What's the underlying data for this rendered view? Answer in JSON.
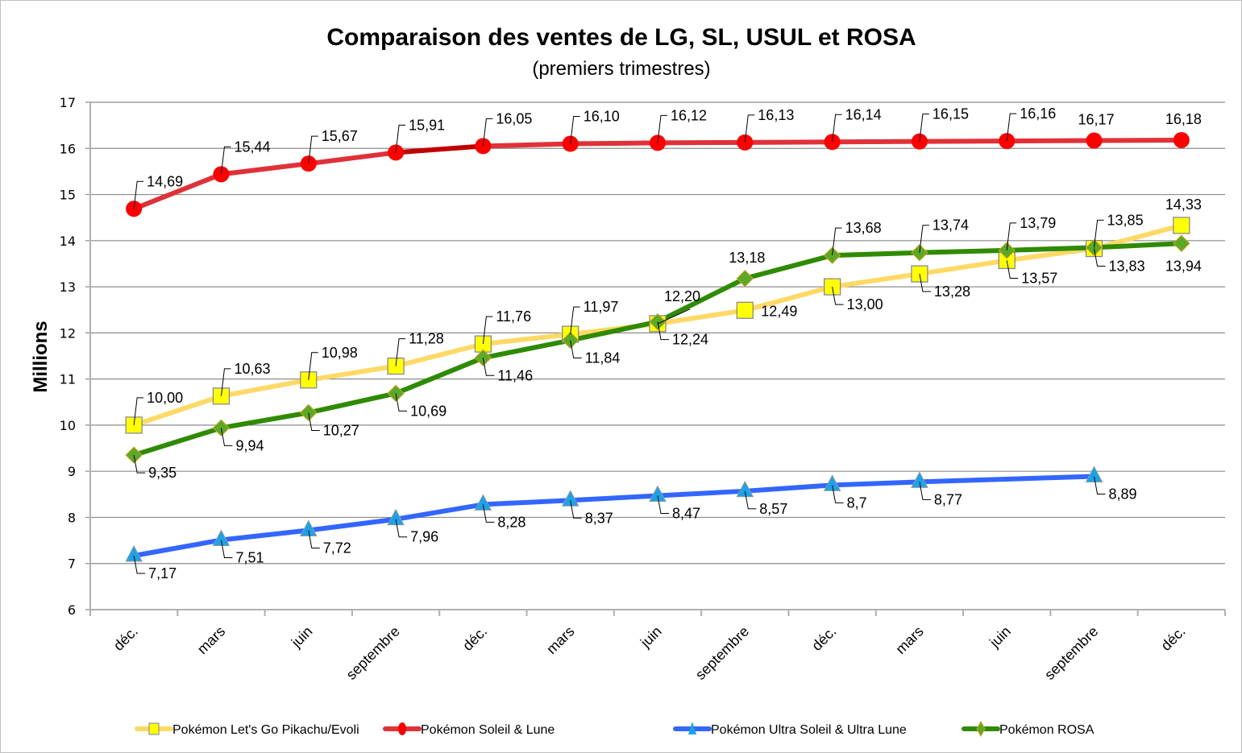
{
  "chart_data": {
    "type": "line",
    "title": "Comparaison des ventes de LG, SL, USUL et ROSA",
    "subtitle": "(premiers trimestres)",
    "xlabel": "",
    "ylabel": "Millions",
    "ylim": [
      6,
      17
    ],
    "yticks": [
      6,
      7,
      8,
      9,
      10,
      11,
      12,
      13,
      14,
      15,
      16,
      17
    ],
    "grid": true,
    "legend_position": "bottom",
    "categories": [
      "déc.",
      "mars",
      "juin",
      "septembre",
      "déc.",
      "mars",
      "juin",
      "septembre",
      "déc.",
      "mars",
      "juin",
      "septembre",
      "déc."
    ],
    "series": [
      {
        "name": "Pokémon Let's Go Pikachu/Evoli",
        "color": "#FFD966",
        "marker": "square",
        "marker_color": "#FFFF00",
        "values": [
          10.0,
          10.63,
          10.98,
          11.28,
          11.76,
          11.97,
          12.2,
          12.49,
          13.0,
          13.28,
          13.57,
          13.83,
          14.33
        ],
        "labels": [
          "10,00",
          "10,63",
          "10,98",
          "11,28",
          "11,76",
          "11,97",
          "12,20",
          "12,49",
          "13,00",
          "13,28",
          "13,57",
          "13,83",
          "14,33"
        ]
      },
      {
        "name": "Pokémon Soleil & Lune",
        "color": "#E03038",
        "marker": "circle",
        "marker_color": "#FF0000",
        "values": [
          14.69,
          15.44,
          15.67,
          15.91,
          16.05,
          16.1,
          16.12,
          16.13,
          16.14,
          16.15,
          16.16,
          16.17,
          16.18
        ],
        "labels": [
          "14,69",
          "15,44",
          "15,67",
          "15,91",
          "16,05",
          "16,10",
          "16,12",
          "16,13",
          "16,14",
          "16,15",
          "16,16",
          "16,17",
          "16,18"
        ]
      },
      {
        "name": "Pokémon Ultra Soleil & Ultra Lune",
        "color": "#3366FF",
        "marker": "triangle",
        "marker_color": "#1AA3E8",
        "values": [
          7.17,
          7.51,
          7.72,
          7.96,
          8.28,
          8.37,
          8.47,
          8.57,
          8.7,
          8.77,
          null,
          8.89,
          null
        ],
        "labels": [
          "7,17",
          "7,51",
          "7,72",
          "7,96",
          "8,28",
          "8,37",
          "8,47",
          "8,57",
          "8,7",
          "8,77",
          null,
          "8,89",
          null
        ]
      },
      {
        "name": "Pokémon ROSA",
        "color": "#2E8B00",
        "marker": "diamond",
        "marker_color": "#5AAA28",
        "values": [
          9.35,
          9.94,
          10.27,
          10.69,
          11.46,
          11.84,
          12.24,
          13.18,
          13.68,
          13.74,
          13.79,
          13.85,
          13.94
        ],
        "labels": [
          "9,35",
          "9,94",
          "10,27",
          "10,69",
          "11,46",
          "11,84",
          "12,24",
          "13,18",
          "13,68",
          "13,74",
          "13,79",
          "13,85",
          "13,94"
        ]
      }
    ]
  }
}
